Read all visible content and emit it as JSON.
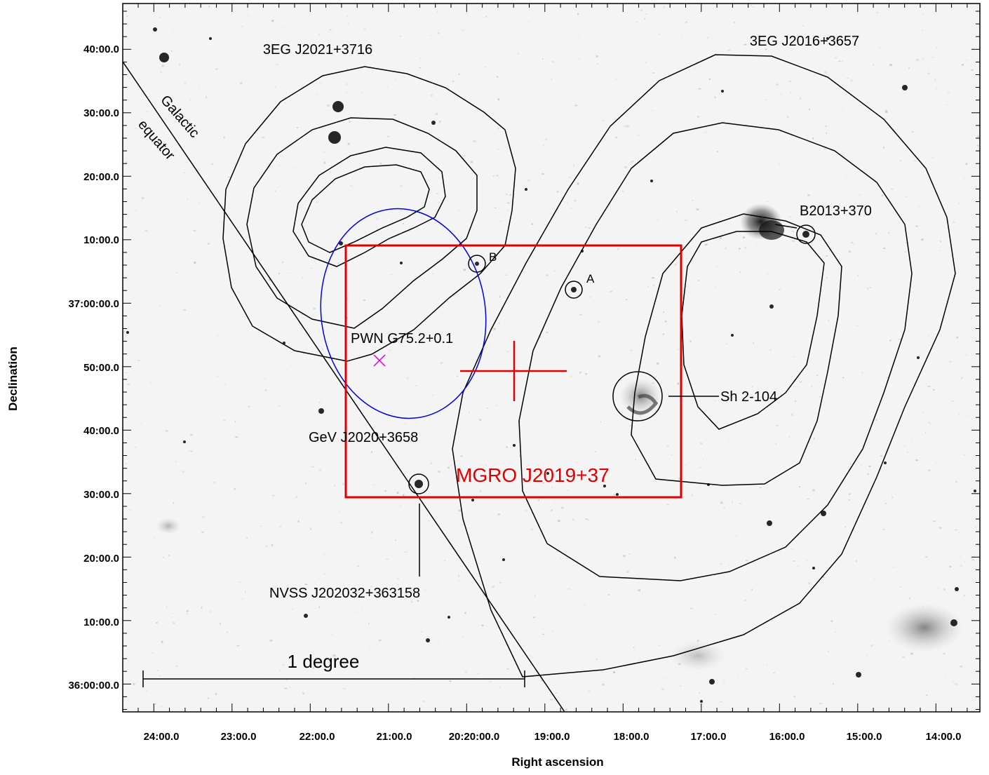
{
  "axes": {
    "x_title": "Right ascension",
    "y_title": "Declination",
    "x_ticks": [
      "24:00.0",
      "23:00.0",
      "22:00.0",
      "21:00.0",
      "20:20:00.0",
      "19:00.0",
      "18:00.0",
      "17:00.0",
      "16:00.0",
      "15:00.0",
      "14:00.0"
    ],
    "y_ticks": [
      "40:00.0",
      "30:00.0",
      "20:00.0",
      "10:00.0",
      "37:00:00.0",
      "50:00.0",
      "40:00.0",
      "30:00.0",
      "20:00.0",
      "10:00.0",
      "36:00:00.0"
    ]
  },
  "labels": {
    "egret_1": "3EG J2021+3716",
    "egret_2": "3EG J2016+3657",
    "galactic_line1": "Galactic",
    "galactic_line2": "equator",
    "pwn": "PWN G75.2+0.1",
    "gev": "GeV J2020+3658",
    "mgro": "MGRO J2019+37",
    "b2013": "B2013+370",
    "sh2": "Sh 2-104",
    "nvss": "NVSS J202032+363158",
    "src_a": "A",
    "src_b": "B",
    "scale": "1 degree"
  },
  "colors": {
    "mgro": "#e00000",
    "gev": "#0000dd",
    "pwn": "#e000e0",
    "contour": "#000000"
  }
}
